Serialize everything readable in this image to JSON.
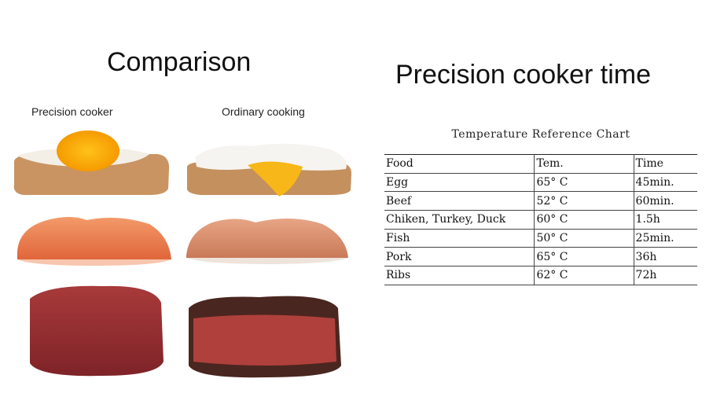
{
  "left": {
    "title": "Comparison",
    "labels": [
      "Precision cooker",
      "Ordinary cooking"
    ]
  },
  "right": {
    "title": "Precision cooker time",
    "table": {
      "caption": "Temperature Reference Chart",
      "header": [
        "Food",
        "Tem.",
        "Time"
      ],
      "rows": [
        [
          "Egg",
          "65° C",
          "45min."
        ],
        [
          "Beef",
          "52° C",
          "60min."
        ],
        [
          "Chiken, Turkey, Duck",
          "60° C",
          "1.5h"
        ],
        [
          "Fish",
          "50° C",
          "25min."
        ],
        [
          "Pork",
          "65° C",
          "36h"
        ],
        [
          "Ribs",
          "62° C",
          "72h"
        ]
      ]
    }
  }
}
